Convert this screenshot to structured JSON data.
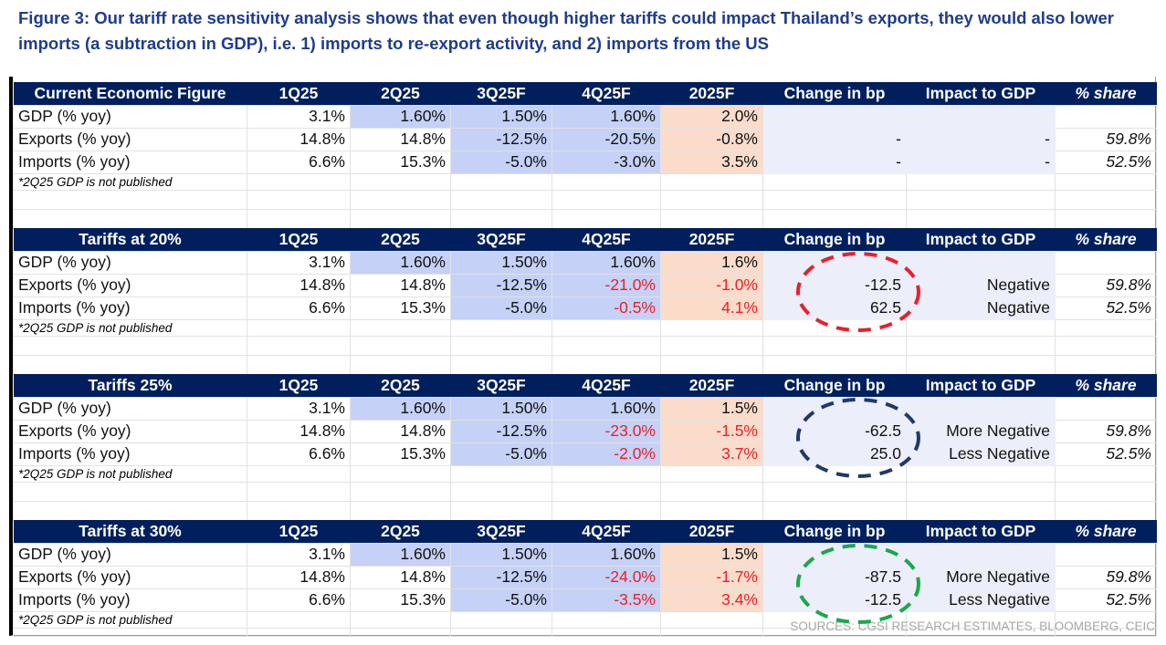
{
  "title": "Figure 3: Our tariff rate sensitivity analysis shows that even though higher tariffs could impact Thailand’s exports, they would also lower imports (a subtraction in GDP), i.e. 1) imports to re-export activity, and 2) imports from the US",
  "columns": [
    "1Q25",
    "2Q25",
    "3Q25F",
    "4Q25F",
    "2025F",
    "Change in bp",
    "Impact to GDP",
    "% share"
  ],
  "note": "*2Q25 GDP is not published",
  "colors": {
    "header": "#001f5c",
    "title": "#1f3c8c",
    "blue_fill": "#c5d1f6",
    "peach_fill": "#fbdccb",
    "lavender_fill": "#eceef9",
    "negative_red": "#e8202a"
  },
  "sections": [
    {
      "label": "Current Economic Figure",
      "ellipse_color": "",
      "rows": [
        {
          "label": "GDP (% yoy)",
          "values": [
            "3.1%",
            "1.60%",
            "1.50%",
            "1.60%",
            "2.0%",
            "",
            "",
            ""
          ]
        },
        {
          "label": "Exports (% yoy)",
          "values": [
            "14.8%",
            "14.8%",
            "-12.5%",
            "-20.5%",
            "-0.8%",
            "-",
            "-",
            "59.8%"
          ]
        },
        {
          "label": "Imports (% yoy)",
          "values": [
            "6.6%",
            "15.3%",
            "-5.0%",
            "-3.0%",
            "3.5%",
            "-",
            "-",
            "52.5%"
          ]
        }
      ]
    },
    {
      "label": "Tariffs at 20%",
      "ellipse_color": "#e8202a",
      "rows": [
        {
          "label": "GDP (% yoy)",
          "values": [
            "3.1%",
            "1.60%",
            "1.50%",
            "1.60%",
            "1.6%",
            "",
            "",
            ""
          ]
        },
        {
          "label": "Exports (% yoy)",
          "values": [
            "14.8%",
            "14.8%",
            "-12.5%",
            "-21.0%",
            "-1.0%",
            "-12.5",
            "Negative",
            "59.8%"
          ]
        },
        {
          "label": "Imports (% yoy)",
          "values": [
            "6.6%",
            "15.3%",
            "-5.0%",
            "-0.5%",
            "4.1%",
            "62.5",
            "Negative",
            "52.5%"
          ]
        }
      ]
    },
    {
      "label": "Tariffs 25%",
      "ellipse_color": "#1f3a68",
      "rows": [
        {
          "label": "GDP (% yoy)",
          "values": [
            "3.1%",
            "1.60%",
            "1.50%",
            "1.60%",
            "1.5%",
            "",
            "",
            ""
          ]
        },
        {
          "label": "Exports (% yoy)",
          "values": [
            "14.8%",
            "14.8%",
            "-12.5%",
            "-23.0%",
            "-1.5%",
            "-62.5",
            "More Negative",
            "59.8%"
          ]
        },
        {
          "label": "Imports (% yoy)",
          "values": [
            "6.6%",
            "15.3%",
            "-5.0%",
            "-2.0%",
            "3.7%",
            "25.0",
            "Less Negative",
            "52.5%"
          ]
        }
      ]
    },
    {
      "label": "Tariffs at 30%",
      "ellipse_color": "#1aa84a",
      "rows": [
        {
          "label": "GDP (% yoy)",
          "values": [
            "3.1%",
            "1.60%",
            "1.50%",
            "1.60%",
            "1.5%",
            "",
            "",
            ""
          ]
        },
        {
          "label": "Exports (% yoy)",
          "values": [
            "14.8%",
            "14.8%",
            "-12.5%",
            "-24.0%",
            "-1.7%",
            "-87.5",
            "More Negative",
            "59.8%"
          ]
        },
        {
          "label": "Imports (% yoy)",
          "values": [
            "6.6%",
            "15.3%",
            "-5.0%",
            "-3.5%",
            "3.4%",
            "-12.5",
            "Less Negative",
            "52.5%"
          ]
        }
      ]
    }
  ],
  "sources": "SOURCES: CGSI RESEARCH ESTIMATES, BLOOMBERG, CEIC"
}
